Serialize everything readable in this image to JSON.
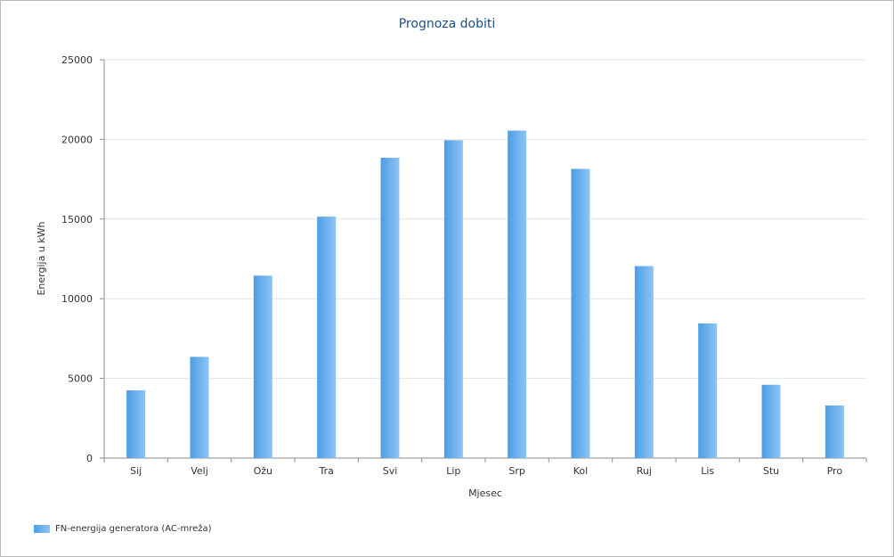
{
  "chart_data": {
    "type": "bar",
    "title": "Prognoza dobiti",
    "xlabel": "Mjesec",
    "ylabel": "Energija u kWh",
    "categories": [
      "Sij",
      "Velj",
      "Ožu",
      "Tra",
      "Svi",
      "Lip",
      "Srp",
      "Kol",
      "Ruj",
      "Lis",
      "Stu",
      "Pro"
    ],
    "series": [
      {
        "name": "FN-energija generatora (AC-mreža)",
        "values": [
          4250,
          6350,
          11450,
          15150,
          18850,
          19950,
          20550,
          18150,
          12050,
          8450,
          4600,
          3300
        ]
      }
    ],
    "ylim": [
      0,
      25000
    ],
    "yticks": [
      0,
      5000,
      10000,
      15000,
      20000,
      25000
    ],
    "grid": true,
    "legend_position": "bottom-left",
    "colors": {
      "bar_dark": "#4d9de6",
      "bar_light": "#8ec4f2",
      "title": "#1b4f8a"
    }
  }
}
